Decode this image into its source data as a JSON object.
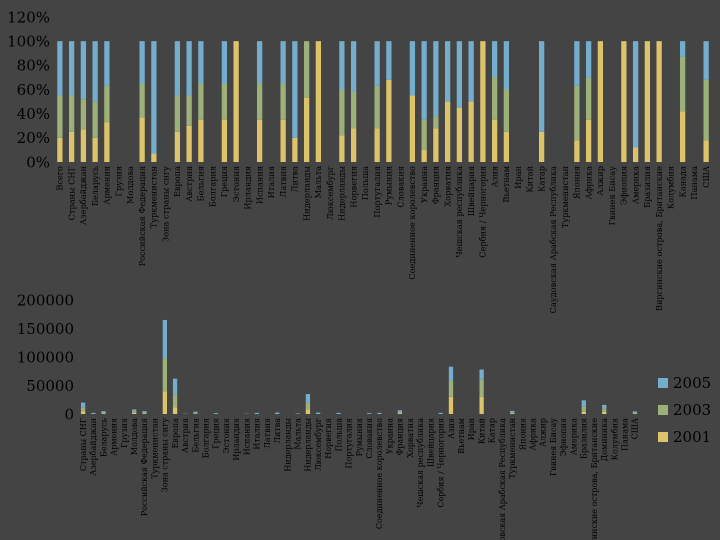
{
  "chart_data": [
    {
      "type": "bar",
      "stacked": true,
      "title": "",
      "ylim": [
        0,
        120
      ],
      "yticks": [
        "0%",
        "20%",
        "40%",
        "60%",
        "80%",
        "100%",
        "120%"
      ],
      "legend": "none",
      "categories": [
        "Всего",
        "Страны СНГ",
        "Азербайджан",
        "Беларусь",
        "Армения",
        "Грузия",
        "Молдова",
        "Российская Федерация",
        "Туркменистан",
        "Зона страны снгу",
        "Европа",
        "Австрия",
        "Бельгия",
        "Болгария",
        "Греция",
        "Эстония",
        "Ирландия",
        "Испания",
        "Италия",
        "Латвия",
        "Литва",
        "Нидерланды",
        "Мальта",
        "Люксембург",
        "Нидерланды",
        "Норвегия",
        "Польша",
        "Португалия",
        "Румыния",
        "Словакия",
        "Соединенное королевство",
        "Украина",
        "Франция",
        "Хорватия",
        "Чешская республика",
        "Швейцария",
        "Сербия / Черногория",
        "Азия",
        "Вьетнам",
        "Иран",
        "Китай",
        "Катар",
        "Саудовская Арабская Республика",
        "Туркменистан",
        "Япония",
        "Африка",
        "Алжир",
        "Гвинея Бисау",
        "Эфиопия",
        "Америка",
        "Бразилия",
        "Виргинские острова, Британские",
        "Колумбия",
        "Канада",
        "Панама",
        "США"
      ],
      "series": [
        {
          "name": "2001",
          "color": "#DDC46B",
          "values": [
            20,
            25,
            27,
            20,
            33,
            0,
            0,
            37,
            7,
            0,
            25,
            30,
            35,
            0,
            35,
            100,
            0,
            35,
            0,
            35,
            20,
            53,
            100,
            0,
            22,
            28,
            0,
            28,
            68,
            0,
            55,
            10,
            28,
            50,
            45,
            50,
            100,
            35,
            25,
            0,
            0,
            25,
            0,
            0,
            18,
            35,
            100,
            0,
            100,
            12,
            100,
            100,
            0,
            42,
            0,
            18
          ]
        },
        {
          "name": "2003",
          "color": "#9CB07A",
          "values": [
            35,
            30,
            25,
            30,
            30,
            0,
            0,
            28,
            0,
            0,
            30,
            25,
            30,
            0,
            30,
            0,
            0,
            30,
            0,
            30,
            0,
            47,
            0,
            0,
            38,
            30,
            0,
            35,
            0,
            0,
            0,
            25,
            10,
            0,
            0,
            0,
            0,
            35,
            35,
            0,
            0,
            0,
            0,
            0,
            45,
            35,
            0,
            0,
            0,
            0,
            0,
            0,
            0,
            45,
            0,
            50
          ]
        },
        {
          "name": "2005",
          "color": "#75ADCC",
          "values": [
            45,
            45,
            48,
            50,
            37,
            0,
            0,
            35,
            93,
            0,
            45,
            45,
            35,
            0,
            35,
            0,
            0,
            35,
            0,
            35,
            80,
            0,
            0,
            0,
            40,
            42,
            0,
            37,
            32,
            0,
            45,
            65,
            62,
            50,
            55,
            50,
            0,
            30,
            40,
            0,
            0,
            75,
            0,
            0,
            37,
            30,
            0,
            0,
            0,
            88,
            0,
            0,
            0,
            13,
            0,
            32
          ]
        }
      ]
    },
    {
      "type": "bar",
      "stacked": true,
      "title": "",
      "ylim": [
        0,
        200000
      ],
      "yticks": [
        "0",
        "50000",
        "100000",
        "150000",
        "200000"
      ],
      "legend": "right",
      "legend_order": [
        "2005",
        "2003",
        "2001"
      ],
      "categories": [
        "Страны СНГ",
        "Азербайджан",
        "Беларусь",
        "Армения",
        "Грузия",
        "Молдова",
        "Российская Федерация",
        "Туркменистан",
        "Зона страны снгу",
        "Европа",
        "Австрия",
        "Бельгия",
        "Болгария",
        "Греция",
        "Эстония",
        "Ирландия",
        "Испания",
        "Италия",
        "Латвия",
        "Литва",
        "Нидерланды",
        "Мальта",
        "Нидерланды",
        "Люксембург",
        "Норвегия",
        "Польша",
        "Португалия",
        "Румыния",
        "Словакия",
        "Соединенное королевство",
        "Украина",
        "Франция",
        "Хорватия",
        "Чешская республика",
        "Швейцария",
        "Сербия / Черногория",
        "Азия",
        "Вьетнам",
        "Иран",
        "Китай",
        "Катар",
        "Саудовская Арабская Республика",
        "Туркменистан",
        "Япония",
        "Африка",
        "Алжир",
        "Гвинея Бисау",
        "Эфиопия",
        "Америка",
        "Бразилия",
        "Виргинские острова, Британские",
        "Доминика",
        "Колумбия",
        "Панама",
        "США"
      ],
      "series": [
        {
          "name": "2001",
          "color": "#DDC46B",
          "values": [
            5000,
            0,
            1000,
            0,
            0,
            2000,
            1000,
            0,
            40000,
            12000,
            0,
            0,
            0,
            0,
            0,
            0,
            0,
            0,
            0,
            0,
            0,
            0,
            8000,
            0,
            0,
            0,
            0,
            0,
            0,
            0,
            0,
            1500,
            0,
            0,
            0,
            0,
            30000,
            0,
            0,
            30000,
            0,
            0,
            1000,
            0,
            0,
            0,
            0,
            0,
            0,
            4000,
            0,
            4000,
            0,
            0,
            1000
          ]
        },
        {
          "name": "2003",
          "color": "#9CB07A",
          "values": [
            6000,
            0,
            1500,
            0,
            0,
            3000,
            1500,
            0,
            58000,
            22000,
            0,
            1500,
            0,
            0,
            0,
            0,
            0,
            0,
            0,
            0,
            0,
            0,
            12000,
            0,
            0,
            0,
            0,
            0,
            0,
            0,
            0,
            2000,
            0,
            0,
            0,
            0,
            28000,
            0,
            0,
            30000,
            0,
            0,
            2000,
            0,
            0,
            0,
            0,
            0,
            0,
            9000,
            0,
            6000,
            0,
            0,
            1500
          ]
        },
        {
          "name": "2005",
          "color": "#75ADCC",
          "values": [
            9000,
            2000,
            2500,
            0,
            0,
            3000,
            2500,
            0,
            67000,
            28000,
            500,
            2500,
            0,
            1500,
            0,
            0,
            500,
            2000,
            0,
            2500,
            0,
            1000,
            15000,
            2500,
            0,
            2000,
            0,
            0,
            1500,
            2000,
            0,
            3000,
            0,
            0,
            0,
            2000,
            25000,
            0,
            0,
            18000,
            0,
            0,
            2500,
            0,
            0,
            0,
            0,
            0,
            0,
            11000,
            0,
            6000,
            0,
            0,
            2000
          ]
        }
      ]
    }
  ]
}
